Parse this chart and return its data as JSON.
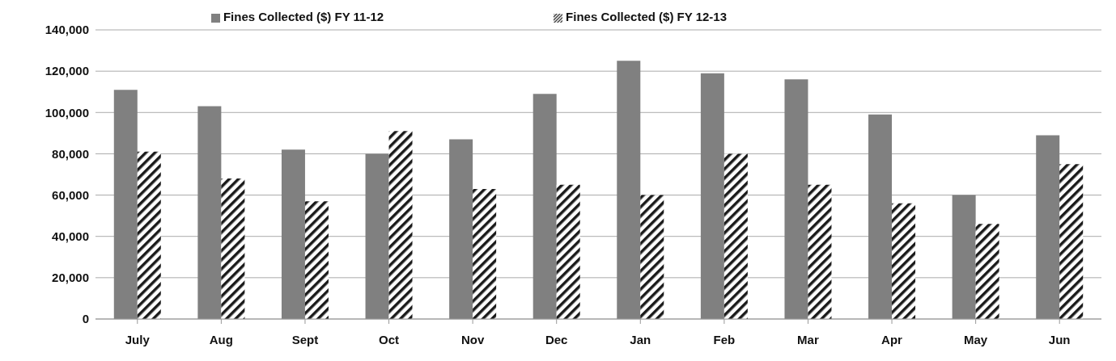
{
  "chart_data": {
    "type": "bar",
    "categories": [
      "July",
      "Aug",
      "Sept",
      "Oct",
      "Nov",
      "Dec",
      "Jan",
      "Feb",
      "Mar",
      "Apr",
      "May",
      "Jun"
    ],
    "series": [
      {
        "name": "Fines Collected ($) FY 11-12",
        "color": "#808080",
        "values": [
          111000,
          103000,
          82000,
          80000,
          87000,
          109000,
          125000,
          119000,
          116000,
          99000,
          60000,
          89000
        ]
      },
      {
        "name": "Fines Collected ($) FY 12-13",
        "color": "#1a1a1a",
        "values": [
          81000,
          68000,
          57000,
          91000,
          63000,
          65000,
          60000,
          80000,
          65000,
          56000,
          46000,
          75000
        ]
      }
    ],
    "ylim": [
      0,
      140000
    ],
    "yticks": [
      {
        "value": 0,
        "label": "0"
      },
      {
        "value": 20000,
        "label": "20,000"
      },
      {
        "value": 40000,
        "label": "40,000"
      },
      {
        "value": 60000,
        "label": "60,000"
      },
      {
        "value": 80000,
        "label": "80,000"
      },
      {
        "value": 100000,
        "label": "100,000"
      },
      {
        "value": 120000,
        "label": "120,000"
      },
      {
        "value": 140000,
        "label": "140,000"
      }
    ],
    "grid": "y",
    "legend": "top"
  }
}
